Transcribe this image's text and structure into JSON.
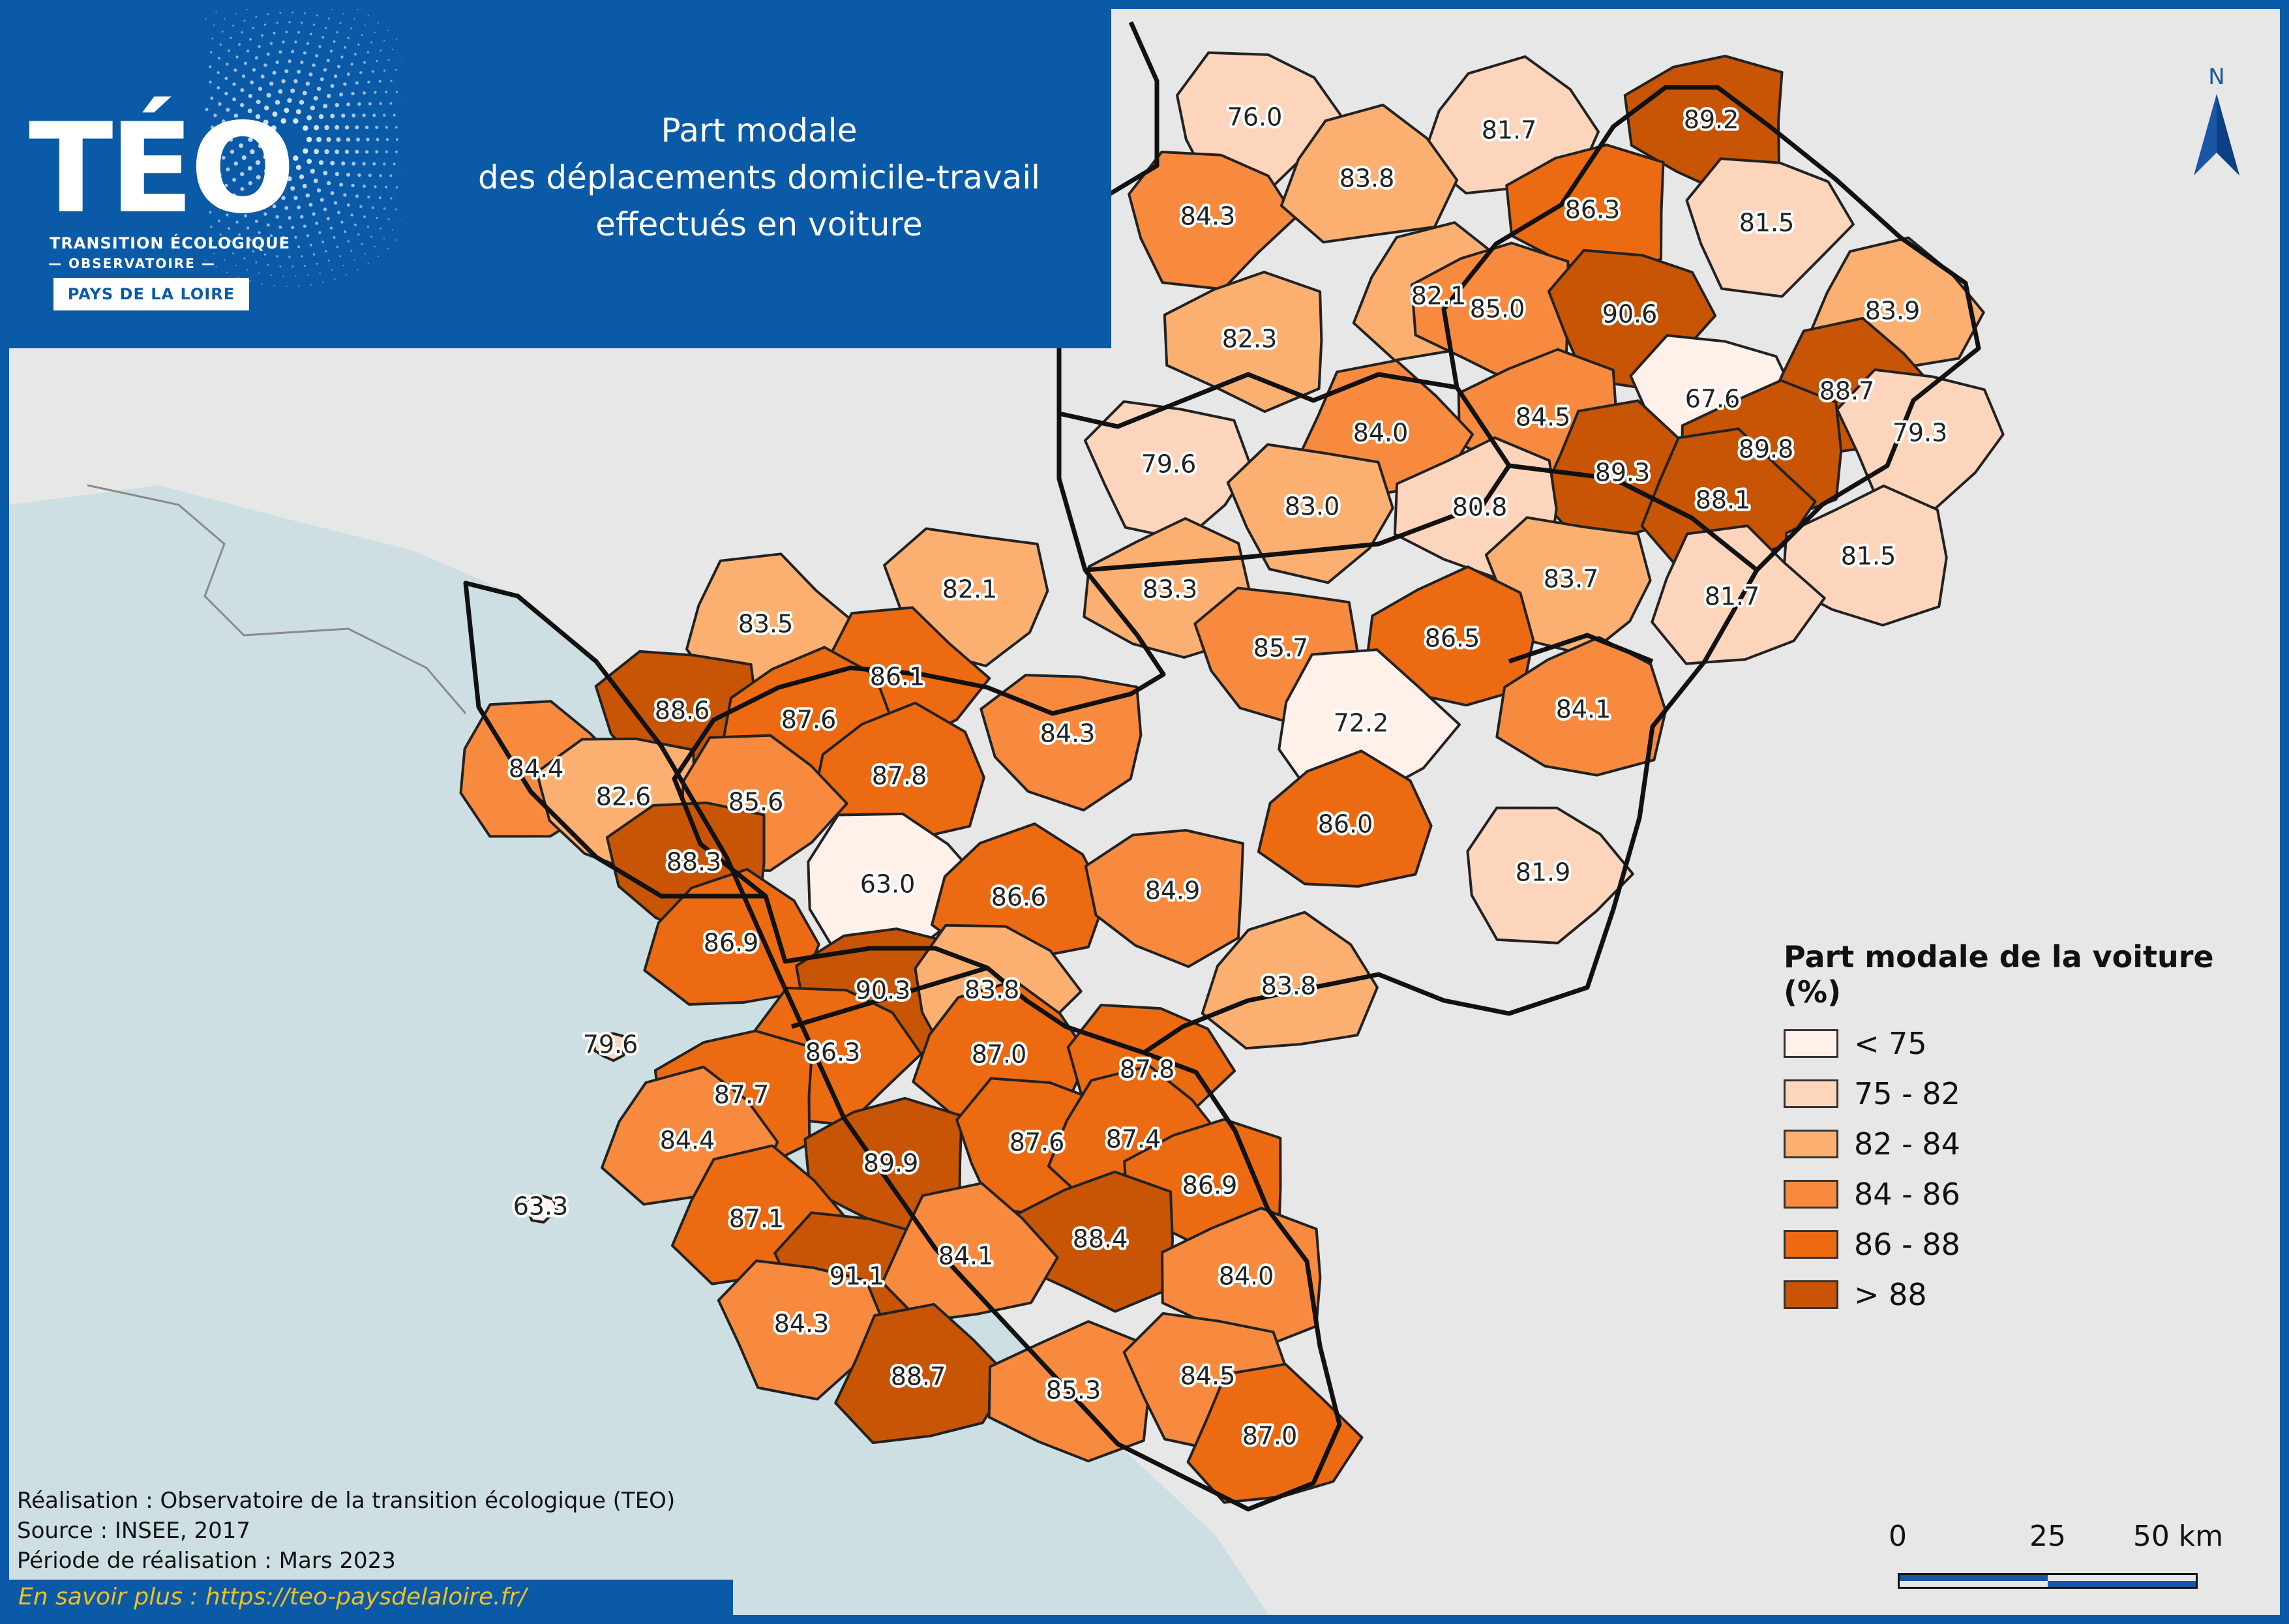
{
  "header": {
    "logo_main": "TÉO",
    "logo_sub1": "TRANSITION ÉCOLOGIQUE",
    "logo_sub2": "— OBSERVATOIRE —",
    "logo_region": "PAYS DE LA LOIRE",
    "title_lines": [
      "Part modale",
      "des déplacements domicile-travail",
      "effectués en voiture"
    ]
  },
  "north": {
    "label": "N"
  },
  "legend": {
    "title": "Part modale de la voiture (%)",
    "items": [
      {
        "label": "< 75",
        "color": "#fff1ea"
      },
      {
        "label": "75 - 82",
        "color": "#fdd5bd"
      },
      {
        "label": "82 - 84",
        "color": "#fbb072"
      },
      {
        "label": "84 - 86",
        "color": "#f78a3e"
      },
      {
        "label": "86 - 88",
        "color": "#ec6a12"
      },
      {
        "label": "> 88",
        "color": "#c85405"
      }
    ]
  },
  "credits": {
    "line1": "Réalisation : Observatoire de la transition écologique (TEO)",
    "line2": "Source : INSEE, 2017",
    "line3": "Période de réalisation : Mars 2023",
    "link": "En savoir plus : https://teo-paysdelaloire.fr/"
  },
  "scale": {
    "labels": [
      "0",
      "25",
      "50 km"
    ]
  },
  "zones": [
    {
      "value": "76.0"
    },
    {
      "value": "81.7"
    },
    {
      "value": "89.2"
    },
    {
      "value": "84.3"
    },
    {
      "value": "83.8"
    },
    {
      "value": "86.3"
    },
    {
      "value": "81.5"
    },
    {
      "value": "82.1"
    },
    {
      "value": "85.0"
    },
    {
      "value": "90.6"
    },
    {
      "value": "83.9"
    },
    {
      "value": "82.3"
    },
    {
      "value": "67.6"
    },
    {
      "value": "88.7"
    },
    {
      "value": "84.5"
    },
    {
      "value": "79.3"
    },
    {
      "value": "84.0"
    },
    {
      "value": "89.8"
    },
    {
      "value": "79.6"
    },
    {
      "value": "89.3"
    },
    {
      "value": "80.8"
    },
    {
      "value": "83.0"
    },
    {
      "value": "88.1"
    },
    {
      "value": "81.5"
    },
    {
      "value": "83.7"
    },
    {
      "value": "81.7"
    },
    {
      "value": "83.3"
    },
    {
      "value": "82.1"
    },
    {
      "value": "83.5"
    },
    {
      "value": "86.5"
    },
    {
      "value": "85.7"
    },
    {
      "value": "86.1"
    },
    {
      "value": "84.1"
    },
    {
      "value": "88.6"
    },
    {
      "value": "72.2"
    },
    {
      "value": "87.6"
    },
    {
      "value": "84.3"
    },
    {
      "value": "84.4"
    },
    {
      "value": "87.8"
    },
    {
      "value": "82.6"
    },
    {
      "value": "85.6"
    },
    {
      "value": "86.0"
    },
    {
      "value": "88.3"
    },
    {
      "value": "63.0"
    },
    {
      "value": "86.6"
    },
    {
      "value": "84.9"
    },
    {
      "value": "81.9"
    },
    {
      "value": "86.9"
    },
    {
      "value": "90.3"
    },
    {
      "value": "83.8"
    },
    {
      "value": "83.8"
    },
    {
      "value": "79.6"
    },
    {
      "value": "86.3"
    },
    {
      "value": "87.0"
    },
    {
      "value": "87.7"
    },
    {
      "value": "87.8"
    },
    {
      "value": "84.4"
    },
    {
      "value": "89.9"
    },
    {
      "value": "87.6"
    },
    {
      "value": "87.4"
    },
    {
      "value": "86.9"
    },
    {
      "value": "63.3"
    },
    {
      "value": "87.1"
    },
    {
      "value": "88.4"
    },
    {
      "value": "91.1"
    },
    {
      "value": "84.1"
    },
    {
      "value": "84.0"
    },
    {
      "value": "84.3"
    },
    {
      "value": "88.7"
    },
    {
      "value": "85.3"
    },
    {
      "value": "84.5"
    },
    {
      "value": "87.0"
    }
  ]
}
